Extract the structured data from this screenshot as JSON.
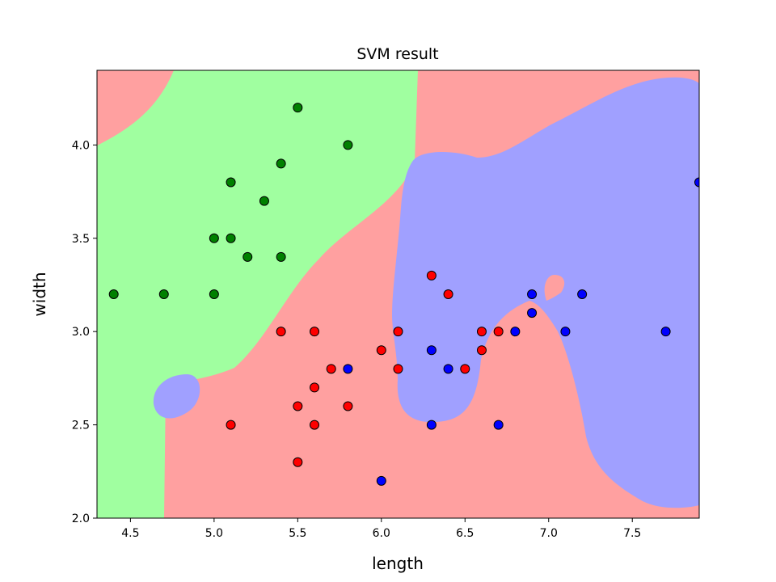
{
  "chart_data": {
    "type": "scatter",
    "title": "SVM result",
    "xlabel": "length",
    "ylabel": "width",
    "xlim": [
      4.3,
      7.9
    ],
    "ylim": [
      2.0,
      4.4
    ],
    "x_ticks": [
      4.5,
      5.0,
      5.5,
      6.0,
      6.5,
      7.0,
      7.5
    ],
    "x_tick_labels": [
      "4.5",
      "5.0",
      "5.5",
      "6.0",
      "6.5",
      "7.0",
      "7.5"
    ],
    "y_ticks": [
      2.0,
      2.5,
      3.0,
      3.5,
      4.0
    ],
    "y_tick_labels": [
      "2.0",
      "2.5",
      "3.0",
      "3.5",
      "4.0"
    ],
    "grid": false,
    "background_regions": {
      "red": "#ffa0a0",
      "green": "#a0ffa0",
      "blue": "#a0a0ff"
    },
    "series": [
      {
        "color": "#008000",
        "points": [
          [
            5.5,
            4.2
          ],
          [
            5.8,
            4.0
          ],
          [
            5.4,
            3.9
          ],
          [
            5.1,
            3.8
          ],
          [
            5.3,
            3.7
          ],
          [
            5.0,
            3.5
          ],
          [
            5.1,
            3.5
          ],
          [
            5.2,
            3.4
          ],
          [
            5.4,
            3.4
          ],
          [
            4.4,
            3.2
          ],
          [
            4.7,
            3.2
          ],
          [
            5.0,
            3.2
          ]
        ]
      },
      {
        "color": "#ff0000",
        "points": [
          [
            6.3,
            3.3
          ],
          [
            6.4,
            3.2
          ],
          [
            5.4,
            3.0
          ],
          [
            5.6,
            3.0
          ],
          [
            6.1,
            3.0
          ],
          [
            6.6,
            3.0
          ],
          [
            6.7,
            3.0
          ],
          [
            6.0,
            2.9
          ],
          [
            6.6,
            2.9
          ],
          [
            5.7,
            2.8
          ],
          [
            6.1,
            2.8
          ],
          [
            6.5,
            2.8
          ],
          [
            5.6,
            2.7
          ],
          [
            5.5,
            2.6
          ],
          [
            5.8,
            2.6
          ],
          [
            5.1,
            2.5
          ],
          [
            5.6,
            2.5
          ],
          [
            5.5,
            2.3
          ]
        ]
      },
      {
        "color": "#0000ff",
        "points": [
          [
            7.9,
            3.8
          ],
          [
            6.9,
            3.2
          ],
          [
            7.2,
            3.2
          ],
          [
            6.9,
            3.1
          ],
          [
            6.8,
            3.0
          ],
          [
            7.1,
            3.0
          ],
          [
            7.7,
            3.0
          ],
          [
            6.3,
            2.9
          ],
          [
            5.8,
            2.8
          ],
          [
            6.4,
            2.8
          ],
          [
            6.3,
            2.5
          ],
          [
            6.7,
            2.5
          ],
          [
            6.0,
            2.2
          ]
        ]
      }
    ]
  }
}
